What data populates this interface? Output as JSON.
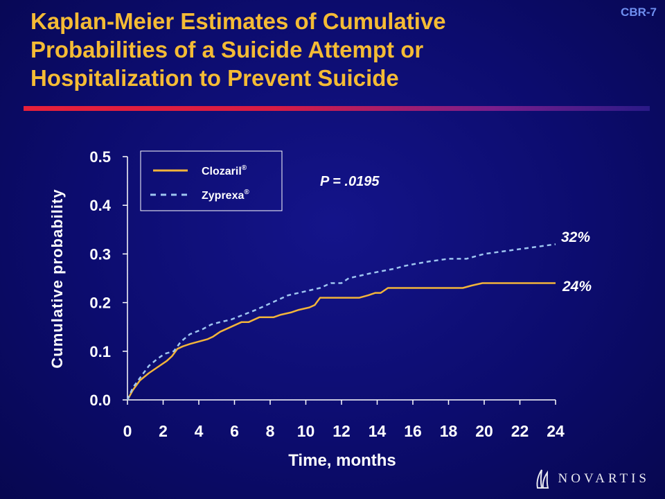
{
  "slide": {
    "id": "CBR-7",
    "title_lines": [
      "Kaplan-Meier Estimates of Cumulative",
      "Probabilities of a Suicide Attempt or",
      "Hospitalization to Prevent Suicide"
    ],
    "brand": "NOVARTIS"
  },
  "colors": {
    "title": "#f4bb35",
    "clozaril": "#f2b43a",
    "zyprexa": "#9ec5f0",
    "axis_text": "#ffffff"
  },
  "chart_data": {
    "type": "line",
    "ylabel": "Cumulative probability",
    "xlabel": "Time, months",
    "xlim": [
      0,
      24
    ],
    "ylim": [
      0,
      0.5
    ],
    "x_ticks": [
      0,
      2,
      4,
      6,
      8,
      10,
      12,
      14,
      16,
      18,
      20,
      22,
      24
    ],
    "y_ticks": [
      "0.0",
      "0.1",
      "0.2",
      "0.3",
      "0.4",
      "0.5"
    ],
    "y_tick_values": [
      0,
      0.1,
      0.2,
      0.3,
      0.4,
      0.5
    ],
    "annotation": "P = .0195",
    "legend_position": "top-left",
    "series": [
      {
        "name": "Clozaril",
        "superscript": "®",
        "style": "solid",
        "end_label": "24%",
        "points": [
          [
            0,
            0
          ],
          [
            0.3,
            0.02
          ],
          [
            0.7,
            0.04
          ],
          [
            1.2,
            0.055
          ],
          [
            1.8,
            0.07
          ],
          [
            2.2,
            0.08
          ],
          [
            2.5,
            0.09
          ],
          [
            2.8,
            0.105
          ],
          [
            3.1,
            0.11
          ],
          [
            3.5,
            0.115
          ],
          [
            4,
            0.12
          ],
          [
            4.5,
            0.125
          ],
          [
            4.8,
            0.13
          ],
          [
            5.2,
            0.14
          ],
          [
            5.8,
            0.15
          ],
          [
            6.1,
            0.155
          ],
          [
            6.4,
            0.16
          ],
          [
            6.8,
            0.16
          ],
          [
            7.1,
            0.165
          ],
          [
            7.4,
            0.17
          ],
          [
            8.2,
            0.17
          ],
          [
            8.6,
            0.175
          ],
          [
            9.2,
            0.18
          ],
          [
            9.6,
            0.185
          ],
          [
            10.2,
            0.19
          ],
          [
            10.5,
            0.195
          ],
          [
            10.6,
            0.2
          ],
          [
            10.8,
            0.21
          ],
          [
            13,
            0.21
          ],
          [
            13.5,
            0.215
          ],
          [
            13.9,
            0.22
          ],
          [
            14.2,
            0.22
          ],
          [
            14.6,
            0.23
          ],
          [
            18.8,
            0.23
          ],
          [
            19.3,
            0.235
          ],
          [
            19.9,
            0.24
          ],
          [
            24,
            0.24
          ]
        ]
      },
      {
        "name": "Zyprexa",
        "superscript": "®",
        "style": "dashed",
        "end_label": "32%",
        "points": [
          [
            0,
            0
          ],
          [
            0.3,
            0.025
          ],
          [
            0.7,
            0.045
          ],
          [
            1.2,
            0.07
          ],
          [
            1.7,
            0.085
          ],
          [
            2.1,
            0.095
          ],
          [
            2.6,
            0.1
          ],
          [
            3,
            0.12
          ],
          [
            3.5,
            0.135
          ],
          [
            4.2,
            0.145
          ],
          [
            4.7,
            0.155
          ],
          [
            5.2,
            0.16
          ],
          [
            5.8,
            0.165
          ],
          [
            6.5,
            0.175
          ],
          [
            7.2,
            0.185
          ],
          [
            7.8,
            0.195
          ],
          [
            8.4,
            0.205
          ],
          [
            9,
            0.215
          ],
          [
            9.6,
            0.22
          ],
          [
            10.2,
            0.225
          ],
          [
            10.8,
            0.23
          ],
          [
            11.4,
            0.24
          ],
          [
            12,
            0.24
          ],
          [
            12.4,
            0.25
          ],
          [
            13,
            0.255
          ],
          [
            13.6,
            0.26
          ],
          [
            14.3,
            0.265
          ],
          [
            15,
            0.27
          ],
          [
            15.5,
            0.275
          ],
          [
            16.2,
            0.28
          ],
          [
            17,
            0.285
          ],
          [
            18,
            0.29
          ],
          [
            19,
            0.29
          ],
          [
            19.5,
            0.295
          ],
          [
            20,
            0.3
          ],
          [
            21,
            0.305
          ],
          [
            22,
            0.31
          ],
          [
            23,
            0.315
          ],
          [
            24,
            0.32
          ]
        ]
      }
    ]
  }
}
